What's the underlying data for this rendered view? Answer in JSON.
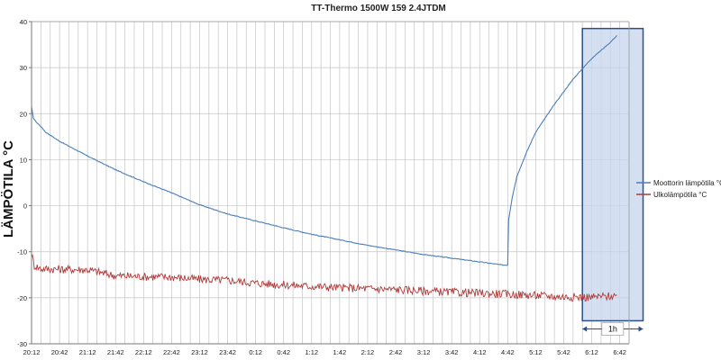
{
  "chart_data": {
    "type": "line",
    "title": "TT-Thermo 1500W 159 2.4JTDM",
    "ylabel": "LÄMPÖTILA °C",
    "xlabel": "",
    "ylim": [
      -30,
      40
    ],
    "y_ticks": [
      40,
      30,
      20,
      10,
      0,
      -10,
      -20,
      -30
    ],
    "x_tick_labels": [
      "20:12",
      "20:42",
      "21:12",
      "21:42",
      "22:12",
      "22:42",
      "23:12",
      "23:42",
      "0:12",
      "0:42",
      "1:12",
      "1:42",
      "2:12",
      "2:42",
      "3:12",
      "3:42",
      "4:12",
      "4:42",
      "5:12",
      "5:42",
      "6:12",
      "6:42"
    ],
    "grid": true,
    "legend_position": "right",
    "series": [
      {
        "name": "Moottorin lämpötila °C",
        "color": "#4a7ebb",
        "points": [
          [
            0,
            21.5
          ],
          [
            2,
            19.0
          ],
          [
            5,
            18.2
          ],
          [
            10,
            17.2
          ],
          [
            15,
            16.0
          ],
          [
            30,
            14.0
          ],
          [
            60,
            10.8
          ],
          [
            90,
            7.8
          ],
          [
            120,
            5.2
          ],
          [
            150,
            2.8
          ],
          [
            180,
            0.2
          ],
          [
            210,
            -1.8
          ],
          [
            240,
            -3.3
          ],
          [
            270,
            -4.8
          ],
          [
            300,
            -6.2
          ],
          [
            330,
            -7.4
          ],
          [
            360,
            -8.6
          ],
          [
            390,
            -9.6
          ],
          [
            420,
            -10.6
          ],
          [
            450,
            -11.4
          ],
          [
            480,
            -12.2
          ],
          [
            505,
            -12.9
          ],
          [
            510,
            -12.9
          ],
          [
            511,
            -3.0
          ],
          [
            515,
            2.0
          ],
          [
            520,
            6.5
          ],
          [
            530,
            11.5
          ],
          [
            540,
            16.0
          ],
          [
            560,
            22.0
          ],
          [
            580,
            27.5
          ],
          [
            600,
            32.0
          ],
          [
            620,
            35.5
          ],
          [
            627,
            37.0
          ]
        ]
      },
      {
        "name": "Ulkolämpötila °C",
        "color": "#b03a3a",
        "points": [
          [
            0,
            -10.5
          ],
          [
            3,
            -13.0
          ],
          [
            10,
            -13.7
          ],
          [
            30,
            -13.8
          ],
          [
            60,
            -13.9
          ],
          [
            90,
            -15.2
          ],
          [
            120,
            -15.4
          ],
          [
            150,
            -15.5
          ],
          [
            180,
            -16.0
          ],
          [
            210,
            -16.2
          ],
          [
            240,
            -16.8
          ],
          [
            270,
            -17.2
          ],
          [
            300,
            -17.5
          ],
          [
            330,
            -17.8
          ],
          [
            360,
            -18.0
          ],
          [
            390,
            -18.2
          ],
          [
            420,
            -18.5
          ],
          [
            450,
            -18.8
          ],
          [
            480,
            -19.0
          ],
          [
            510,
            -19.2
          ],
          [
            540,
            -19.5
          ],
          [
            570,
            -19.8
          ],
          [
            600,
            -19.9
          ],
          [
            627,
            -19.5
          ]
        ]
      }
    ],
    "annotations": [
      {
        "type": "highlight",
        "label": "1h"
      }
    ]
  }
}
